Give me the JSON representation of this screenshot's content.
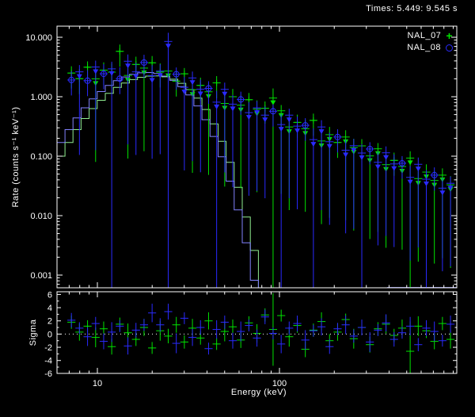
{
  "chart_data": {
    "type": "scatter",
    "title": "Times: 5.449: 9.545 s",
    "xlabel": "Energy (keV)",
    "ylabel": "Rate (counts s⁻¹ keV⁻¹)",
    "ylabel2": "Sigma",
    "x_scale": "log",
    "y_scale": "log",
    "x_range_kev": [
      6.0,
      940
    ],
    "y_range_rate": [
      0.00061,
      15.4
    ],
    "sigma_range": [
      -6.4,
      6.4
    ],
    "grid": false,
    "legend_position": "top-right",
    "x_ticks": [
      {
        "v": 10,
        "label": "10"
      },
      {
        "v": 100,
        "label": "100"
      }
    ],
    "x_minor_ticks": [
      7,
      8,
      9,
      20,
      30,
      40,
      50,
      60,
      70,
      80,
      90,
      200,
      300,
      400,
      500,
      600,
      700,
      800,
      900
    ],
    "y_ticks": [
      {
        "v": 10,
        "label": "10.000"
      },
      {
        "v": 1,
        "label": "1.000"
      },
      {
        "v": 0.1,
        "label": "0.100"
      },
      {
        "v": 0.01,
        "label": "0.010"
      },
      {
        "v": 0.001,
        "label": "0.001"
      }
    ],
    "sigma_ticks": [
      6,
      4,
      2,
      0,
      -2,
      -4,
      -6
    ],
    "sigma_minor_ticks": [
      5,
      3,
      1,
      -1,
      -3,
      -5
    ],
    "colors": {
      "background": "#000000",
      "frame": "#ffffff",
      "text": "#ffffff",
      "nal07": "#00e400",
      "nal08": "#2a2aff",
      "model_nal07": "#90ee90",
      "model_nal08": "#8282ff",
      "zero_line": "#ffffff"
    },
    "energies_kev": [
      7.2,
      7.97,
      8.83,
      9.78,
      10.83,
      11.99,
      13.28,
      14.71,
      16.29,
      18.04,
      19.98,
      22.12,
      24.5,
      27.13,
      30.04,
      33.27,
      36.84,
      40.8,
      45.18,
      50.03,
      55.4,
      61.35,
      67.94,
      75.23,
      83.31,
      92.25,
      102.2,
      113.1,
      125.3,
      138.7,
      153.6,
      170.1,
      188.4,
      208.6,
      231.0,
      255.8,
      283.3,
      313.7,
      347.4,
      384.7,
      426.0,
      471.7,
      522.3,
      578.4,
      640.5,
      709.3,
      785.4,
      869.7
    ],
    "bin_half_width_factor": 1.0524,
    "model_edges_kev": [
      6.0,
      6.64,
      7.35,
      8.14,
      9.01,
      9.98,
      11.05,
      12.24,
      13.55,
      15.0,
      16.61,
      18.39,
      20.36,
      22.55,
      24.97,
      27.65,
      30.61,
      33.9,
      37.53,
      41.56,
      46.02,
      50.95,
      56.42,
      62.47,
      69.17,
      76.59
    ],
    "model_floor_segment": {
      "e_start": 390,
      "e_end": 940,
      "rate": 0.00062
    },
    "series": [
      {
        "name": "NAL_07",
        "marker": "plus",
        "color_key": "nal07",
        "model_color_key": "model_nal07",
        "rates": [
          2.5,
          2.01,
          3.14,
          2.0,
          2.8,
          2.59,
          5.8,
          2.28,
          3.49,
          3.03,
          3.72,
          2.6,
          2.7,
          1.83,
          2.43,
          1.31,
          1.55,
          1.21,
          1.71,
          0.77,
          1.0,
          0.72,
          0.89,
          0.62,
          0.64,
          0.95,
          0.58,
          0.31,
          0.37,
          0.29,
          0.4,
          0.18,
          0.23,
          0.17,
          0.21,
          0.14,
          0.149,
          0.101,
          0.133,
          0.072,
          0.085,
          0.067,
          0.093,
          0.042,
          0.054,
          0.039,
          0.048,
          0.033
        ],
        "err_up_frac": [
          0.3,
          0.45,
          0.25,
          0.5,
          0.35,
          0.4,
          0.3,
          0.55,
          0.35,
          0.45,
          0.3,
          0.4,
          0.3,
          0.45,
          0.25,
          0.5,
          0.35,
          0.4,
          0.3,
          0.55,
          0.35,
          0.45,
          0.3,
          0.4,
          0.3,
          0.45,
          0.25,
          0.5,
          0.35,
          0.4,
          0.3,
          0.55,
          0.35,
          0.45,
          0.3,
          0.4,
          0.3,
          0.45,
          0.25,
          0.5,
          0.35,
          0.4,
          0.3,
          0.55,
          0.35,
          0.45,
          0.3,
          0.4
        ],
        "bar_flags": [
          0,
          0,
          0,
          1,
          0,
          0,
          0,
          1,
          0,
          1,
          0,
          0,
          1,
          0,
          0,
          1,
          0,
          1,
          0,
          1,
          0,
          1,
          0,
          1,
          0,
          2,
          1,
          1,
          0,
          1,
          0,
          1,
          1,
          0,
          1,
          1,
          0,
          1,
          1,
          1,
          0,
          1,
          2,
          1,
          1,
          1,
          1,
          1
        ],
        "model_values": [
          0.1,
          0.17,
          0.28,
          0.43,
          0.63,
          0.87,
          1.14,
          1.43,
          1.7,
          1.94,
          2.12,
          2.22,
          2.24,
          2.16,
          1.97,
          1.68,
          1.32,
          0.95,
          0.61,
          0.35,
          0.178,
          0.079,
          0.03,
          0.0095,
          0.0026,
          0.0006
        ],
        "residual_sigma": [
          1.8,
          0.3,
          1.2,
          -0.5,
          0.8,
          -1.9,
          1.5,
          0.2,
          -0.8,
          1.0,
          -2.1,
          0.5,
          -0.3,
          1.4,
          -1.2,
          0.9,
          -0.6,
          2.0,
          -1.5,
          0.4,
          1.1,
          -0.9,
          1.7,
          0.1,
          2.9,
          0.7,
          2.8,
          -0.4,
          1.3,
          -2.3,
          0.6,
          1.9,
          -1.0,
          0.3,
          2.2,
          -0.7,
          1.0,
          -1.6,
          0.8,
          1.5,
          -0.2,
          0.9,
          -2.6,
          1.2,
          0.5,
          -1.1,
          1.6,
          -0.8
        ],
        "residual_err": [
          1.0,
          1.3,
          0.9,
          1.5,
          1.1,
          1.2,
          1.0,
          1.4,
          1.0,
          1.3,
          0.9,
          1.5,
          1.1,
          1.2,
          1.0,
          1.4,
          1.0,
          1.3,
          0.9,
          1.5,
          1.1,
          1.2,
          1.0,
          1.4,
          1.0,
          5.5,
          0.9,
          1.5,
          1.1,
          1.2,
          1.0,
          1.4,
          1.0,
          1.3,
          0.9,
          1.5,
          1.1,
          1.2,
          1.0,
          1.4,
          1.0,
          1.3,
          4.5,
          1.5,
          1.1,
          1.2,
          1.0,
          1.4
        ]
      },
      {
        "name": "NAL_08",
        "marker": "circle",
        "color_key": "nal08",
        "model_color_key": "model_nal08",
        "rates": [
          1.91,
          2.62,
          1.86,
          3.16,
          2.43,
          2.94,
          2.01,
          3.95,
          2.62,
          3.76,
          2.26,
          2.7,
          8.5,
          2.39,
          1.44,
          2.07,
          1.34,
          1.38,
          0.81,
          1.33,
          0.75,
          0.9,
          0.54,
          0.65,
          0.49,
          0.57,
          0.34,
          0.49,
          0.32,
          0.33,
          0.19,
          0.31,
          0.175,
          0.21,
          0.126,
          0.15,
          0.113,
          0.132,
          0.079,
          0.114,
          0.074,
          0.076,
          0.044,
          0.073,
          0.041,
          0.048,
          0.029,
          0.035
        ],
        "err_up_frac": [
          0.4,
          0.3,
          0.5,
          0.28,
          0.45,
          0.32,
          0.55,
          0.3,
          0.42,
          0.35,
          0.5,
          0.3,
          0.4,
          0.3,
          0.5,
          0.28,
          0.45,
          0.32,
          0.55,
          0.3,
          0.42,
          0.35,
          0.5,
          0.3,
          0.4,
          0.3,
          0.5,
          0.28,
          0.45,
          0.32,
          0.55,
          0.3,
          0.42,
          0.35,
          0.5,
          0.3,
          0.4,
          0.3,
          0.5,
          0.28,
          0.45,
          0.32,
          0.55,
          0.3,
          0.42,
          0.35,
          0.5,
          0.3
        ],
        "bar_flags": [
          0,
          1,
          0,
          1,
          0,
          2,
          0,
          1,
          1,
          0,
          1,
          1,
          2,
          0,
          1,
          1,
          1,
          0,
          2,
          1,
          1,
          0,
          1,
          1,
          1,
          0,
          2,
          1,
          1,
          0,
          2,
          1,
          1,
          0,
          1,
          1,
          2,
          0,
          1,
          1,
          1,
          0,
          1,
          1,
          2,
          0,
          1,
          1
        ],
        "model_values": [
          0.17,
          0.28,
          0.44,
          0.65,
          0.92,
          1.22,
          1.55,
          1.86,
          2.15,
          2.38,
          2.52,
          2.55,
          2.45,
          2.22,
          1.88,
          1.48,
          1.07,
          0.7,
          0.41,
          0.215,
          0.098,
          0.038,
          0.0125,
          0.0035,
          0.00082,
          0.00016
        ],
        "residual_sigma": [
          2.1,
          0.9,
          -0.4,
          1.6,
          -1.1,
          0.3,
          1.2,
          -1.8,
          0.6,
          1.4,
          3.2,
          1.4,
          3.4,
          -1.4,
          2.4,
          -0.5,
          1.0,
          -2.2,
          0.7,
          1.8,
          -1.0,
          0.4,
          1.3,
          -0.6,
          2.6,
          0.1,
          -1.5,
          0.9,
          1.6,
          -0.9,
          0.5,
          1.1,
          -1.9,
          0.8,
          1.4,
          -0.3,
          1.0,
          -1.2,
          0.6,
          1.7,
          -0.8,
          0.2,
          1.2,
          -1.6,
          0.9,
          0.4,
          -1.0,
          1.5
        ],
        "residual_err": [
          1.1,
          0.9,
          1.4,
          1.0,
          1.2,
          1.5,
          0.9,
          1.3,
          1.1,
          0.9,
          1.4,
          1.0,
          1.2,
          1.5,
          0.9,
          1.3,
          1.1,
          0.9,
          1.4,
          1.0,
          1.2,
          1.5,
          0.9,
          1.3,
          1.1,
          0.9,
          1.4,
          1.0,
          1.2,
          1.5,
          0.9,
          1.3,
          1.1,
          0.9,
          1.4,
          1.0,
          1.2,
          1.5,
          0.9,
          1.3,
          1.1,
          0.9,
          1.4,
          1.0,
          1.2,
          1.5,
          0.9,
          1.3
        ]
      }
    ]
  }
}
